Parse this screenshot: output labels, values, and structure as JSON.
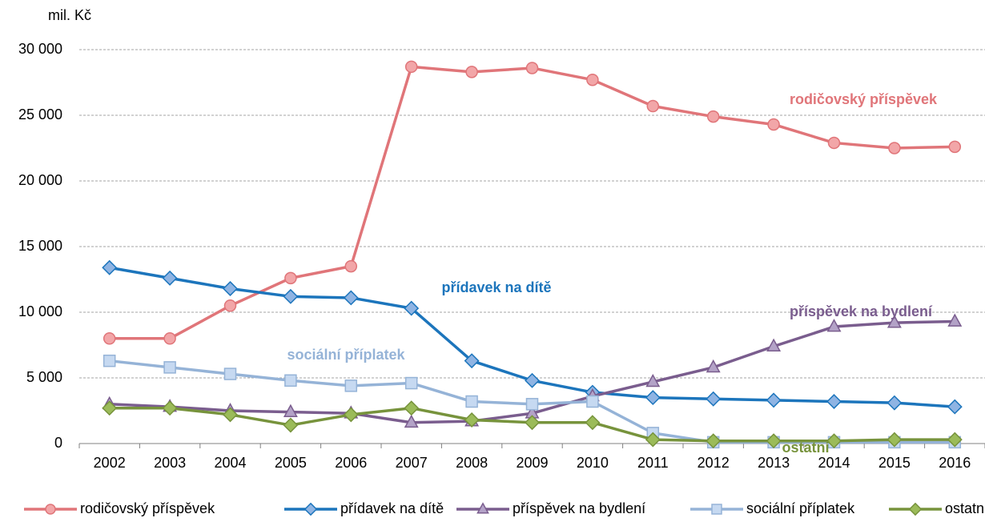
{
  "chart_data": {
    "type": "line",
    "y_axis_label": "mil. Kč",
    "categories": [
      "2002",
      "2003",
      "2004",
      "2005",
      "2006",
      "2007",
      "2008",
      "2009",
      "2010",
      "2011",
      "2012",
      "2013",
      "2014",
      "2015",
      "2016"
    ],
    "series": [
      {
        "name": "rodičovský příspěvek",
        "color": "#e07579",
        "marker": "circle",
        "values": [
          8000,
          8000,
          10500,
          12600,
          13500,
          28700,
          28300,
          28600,
          27700,
          25700,
          24900,
          24300,
          22900,
          22500,
          22600
        ]
      },
      {
        "name": "přídavek na dítě",
        "color": "#1c75bc",
        "marker": "diamond",
        "values": [
          13400,
          12600,
          11800,
          11200,
          11100,
          10300,
          6300,
          4800,
          3900,
          3500,
          3400,
          3300,
          3200,
          3100,
          2800
        ]
      },
      {
        "name": "příspěvek na bydlení",
        "color": "#7a5d8e",
        "marker": "triangle",
        "values": [
          3000,
          2800,
          2500,
          2400,
          2300,
          1600,
          1700,
          2300,
          3600,
          4700,
          5800,
          7400,
          8900,
          9200,
          9300
        ]
      },
      {
        "name": "sociální příplatek",
        "color": "#95b3d7",
        "marker": "square",
        "values": [
          6300,
          5800,
          5300,
          4800,
          4400,
          4600,
          3200,
          3000,
          3200,
          800,
          100,
          100,
          100,
          100,
          100
        ]
      },
      {
        "name": "ostatní",
        "color": "#77933c",
        "marker": "diamond",
        "values": [
          2700,
          2700,
          2200,
          1400,
          2200,
          2700,
          1800,
          1600,
          1600,
          300,
          200,
          200,
          200,
          300,
          300
        ]
      }
    ],
    "annotations": [
      "rodičovský příspěvek",
      "přídavek na dítě",
      "příspěvek na bydlení",
      "sociální příplatek",
      "ostatní"
    ],
    "ylim": [
      0,
      30000
    ],
    "yticks": [
      0,
      {
        "value": 5000,
        "label": "5 000"
      },
      {
        "value": 10000,
        "label": "10 000"
      },
      {
        "value": 15000,
        "label": "15 000"
      },
      {
        "value": 20000,
        "label": "20 000"
      },
      {
        "value": 25000,
        "label": "25 000"
      },
      {
        "value": 30000,
        "label": "30 000"
      }
    ],
    "grid": true
  }
}
